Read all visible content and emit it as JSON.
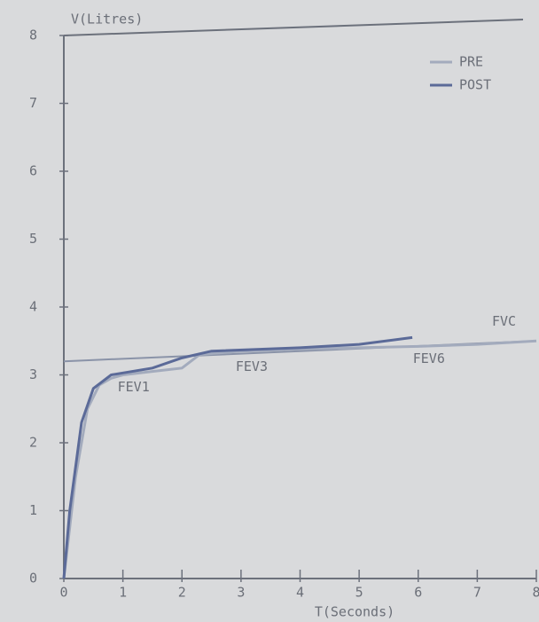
{
  "chart_data": {
    "type": "line",
    "title": "V(Litres)",
    "x_label": "T(Seconds)",
    "xlim": [
      0,
      8
    ],
    "ylim": [
      0,
      8
    ],
    "xticks": [
      0,
      1,
      2,
      3,
      4,
      5,
      6,
      7,
      8
    ],
    "yticks": [
      0,
      1,
      2,
      3,
      4,
      5,
      6,
      7,
      8
    ],
    "legend": "top-right",
    "series": [
      {
        "name": "PRE",
        "color": "#a3abbd",
        "x": [
          0,
          0.2,
          0.4,
          0.6,
          0.8,
          1,
          1.5,
          2,
          2.3,
          3,
          4,
          5,
          6,
          7,
          8
        ],
        "values": [
          0,
          1.5,
          2.5,
          2.85,
          2.95,
          3.0,
          3.05,
          3.1,
          3.3,
          3.35,
          3.38,
          3.4,
          3.42,
          3.45,
          3.5
        ]
      },
      {
        "name": "POST",
        "color": "#5b6a98",
        "x": [
          0,
          0.1,
          0.3,
          0.5,
          0.8,
          1.5,
          2,
          2.5,
          4,
          5,
          5.9
        ],
        "values": [
          0,
          1.0,
          2.3,
          2.8,
          3.0,
          3.1,
          3.25,
          3.35,
          3.4,
          3.45,
          3.55
        ]
      }
    ],
    "reference_line": {
      "label": "FVC",
      "x": [
        0,
        8
      ],
      "values": [
        3.2,
        3.5
      ]
    },
    "annotations": [
      {
        "text": "FEV1",
        "x": 1,
        "y": 3.0
      },
      {
        "text": "FEV3",
        "x": 3,
        "y": 3.3
      },
      {
        "text": "FEV6",
        "x": 6,
        "y": 3.42
      }
    ]
  }
}
